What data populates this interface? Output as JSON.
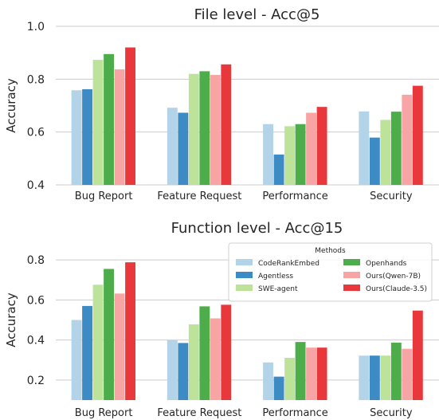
{
  "chart_data": [
    {
      "type": "bar",
      "title": "File level - Acc@5",
      "xlabel": "",
      "ylabel": "Accuracy",
      "ylim": [
        0.4,
        1.0
      ],
      "yticks": [
        "0.4",
        "0.6",
        "0.8",
        "1.0"
      ],
      "grid": true,
      "categories": [
        "Bug Report",
        "Feature Request",
        "Performance",
        "Security"
      ],
      "series": [
        {
          "name": "CodeRankEmbed",
          "values": [
            0.758,
            0.692,
            0.63,
            0.678
          ]
        },
        {
          "name": "Agentless",
          "values": [
            0.762,
            0.673,
            0.515,
            0.579
          ]
        },
        {
          "name": "SWE-agent",
          "values": [
            0.873,
            0.82,
            0.622,
            0.646
          ]
        },
        {
          "name": "Openhands",
          "values": [
            0.895,
            0.83,
            0.63,
            0.677
          ]
        },
        {
          "name": "Ours(Qwen-7B)",
          "values": [
            0.837,
            0.816,
            0.673,
            0.741
          ]
        },
        {
          "name": "Ours(Claude-3.5)",
          "values": [
            0.92,
            0.856,
            0.695,
            0.775
          ]
        }
      ]
    },
    {
      "type": "bar",
      "title": "Function level - Acc@15",
      "xlabel": "",
      "ylabel": "Accuracy",
      "ylim": [
        0.1,
        0.9
      ],
      "yticks": [
        "0.2",
        "0.4",
        "0.6",
        "0.8"
      ],
      "grid": true,
      "legend_title": "Methods",
      "legend_position": "top-right",
      "categories": [
        "Bug Report",
        "Feature Request",
        "Performance",
        "Security"
      ],
      "series": [
        {
          "name": "CodeRankEmbed",
          "values": [
            0.5,
            0.4,
            0.288,
            0.322
          ]
        },
        {
          "name": "Agentless",
          "values": [
            0.57,
            0.385,
            0.217,
            0.322
          ]
        },
        {
          "name": "SWE-agent",
          "values": [
            0.676,
            0.478,
            0.311,
            0.322
          ]
        },
        {
          "name": "Openhands",
          "values": [
            0.755,
            0.568,
            0.39,
            0.387
          ]
        },
        {
          "name": "Ours(Qwen-7B)",
          "values": [
            0.632,
            0.508,
            0.362,
            0.356
          ]
        },
        {
          "name": "Ours(Claude-3.5)",
          "values": [
            0.788,
            0.576,
            0.362,
            0.547
          ]
        }
      ]
    }
  ],
  "colors": [
    "#b3d4e8",
    "#3d8bc4",
    "#bde39a",
    "#4dad4a",
    "#f8a4a4",
    "#e8383b"
  ],
  "grid_color": "#cccccc"
}
